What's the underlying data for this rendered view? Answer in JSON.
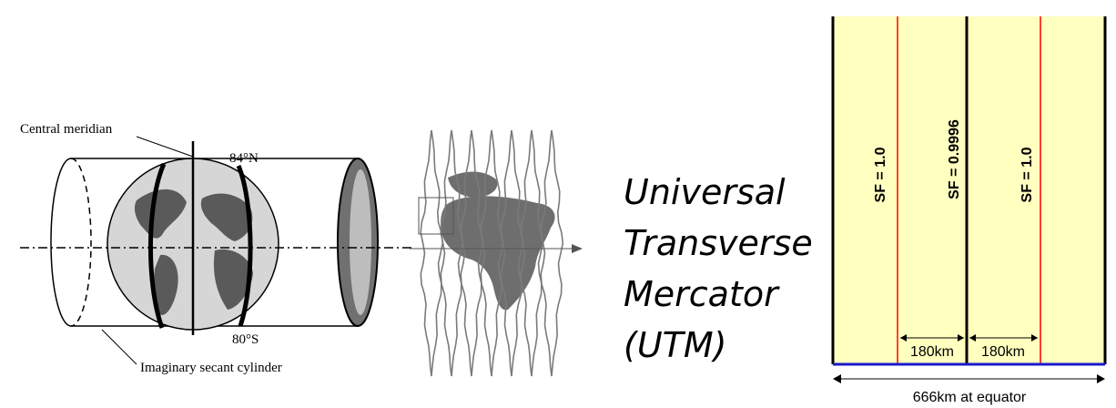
{
  "cylinder_diagram": {
    "central_meridian_label": "Central meridian",
    "north_limit_label": "84°N",
    "south_limit_label": "80°S",
    "cylinder_label": "Imaginary secant cylinder"
  },
  "title": {
    "line1": "Universal",
    "line2": "Transverse",
    "line3": "Mercator",
    "line4": "(UTM)"
  },
  "zone_diagram": {
    "left_scale_label": "SF = 1.0",
    "center_scale_label": "SF = 0.9996",
    "right_scale_label": "SF = 1.0",
    "left_distance_label": "180km",
    "right_distance_label": "180km",
    "width_label": "666km at equator",
    "colors": {
      "zone_fill": "#ffffc0",
      "secant_line": "#ff0000",
      "equator_line": "#1a1acc",
      "boundary": "#000000"
    }
  }
}
